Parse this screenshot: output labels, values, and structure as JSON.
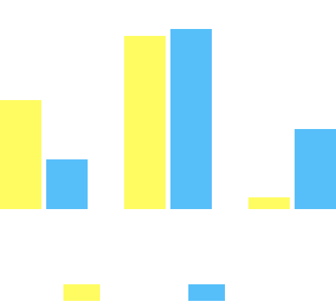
{
  "chart_data": {
    "type": "bar",
    "categories": [
      null,
      null,
      null
    ],
    "series": [
      {
        "color": "#fffc62",
        "values": [
          158,
          251,
          17
        ]
      },
      {
        "color": "#56bffa",
        "values": [
          72,
          261,
          116
        ]
      }
    ],
    "ylim": [
      0,
      300
    ]
  }
}
